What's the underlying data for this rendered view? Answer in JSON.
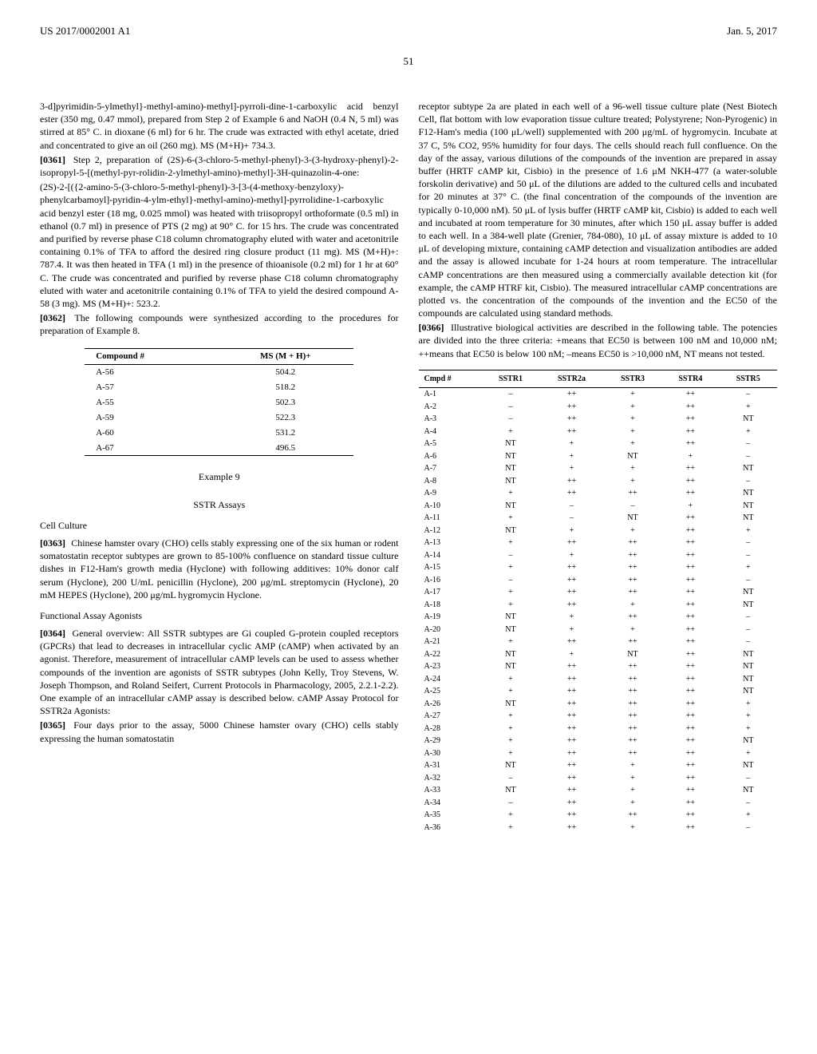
{
  "header": {
    "pub_number": "US 2017/0002001 A1",
    "pub_date": "Jan. 5, 2017",
    "page_number": "51"
  },
  "left_col": {
    "para1": "3-d]pyrimidin-5-ylmethyl}-methyl-amino)-methyl]-pyrroli-dine-1-carboxylic acid benzyl ester (350 mg, 0.47 mmol), prepared from Step 2 of Example 6 and NaOH (0.4 N, 5 ml) was stirred at 85° C. in dioxane (6 ml) for 6 hr. The crude was extracted with ethyl acetate, dried and concentrated to give an oil (260 mg). MS (M+H)+ 734.3.",
    "para2_num": "[0361]",
    "para2": "Step 2, preparation of (2S)-6-(3-chloro-5-methyl-phenyl)-3-(3-hydroxy-phenyl)-2-isopropyl-5-[(methyl-pyr-rolidin-2-ylmethyl-amino)-methyl]-3H-quinazolin-4-one:",
    "para2b": "(2S)-2-[({2-amino-5-(3-chloro-5-methyl-phenyl)-3-[3-(4-methoxy-benzyloxy)-phenylcarbamoyl]-pyridin-4-ylm-ethyl}-methyl-amino)-methyl]-pyrrolidine-1-carboxylic acid benzyl ester (18 mg, 0.025 mmol) was heated with triisopropyl orthoformate (0.5 ml) in ethanol (0.7 ml) in presence of PTS (2 mg) at 90° C. for 15 hrs. The crude was concentrated and purified by reverse phase C18 column chromatography eluted with water and acetonitrile containing 0.1% of TFA to afford the desired ring closure product (11 mg). MS (M+H)+: 787.4. It was then heated in TFA (1 ml) in the presence of thioanisole (0.2 ml) for 1 hr at 60° C. The crude was concentrated and purified by reverse phase C18 column chromatography eluted with water and acetonitrile containing 0.1% of TFA to yield the desired compound A-58 (3 mg). MS (M+H)+: 523.2.",
    "para3_num": "[0362]",
    "para3": "The following compounds were synthesized according to the procedures for preparation of Example 8.",
    "compound_table": {
      "headers": [
        "Compound #",
        "MS (M + H)+"
      ],
      "rows": [
        [
          "A-56",
          "504.2"
        ],
        [
          "A-57",
          "518.2"
        ],
        [
          "A-55",
          "502.3"
        ],
        [
          "A-59",
          "522.3"
        ],
        [
          "A-60",
          "531.2"
        ],
        [
          "A-67",
          "496.5"
        ]
      ]
    },
    "example_heading": "Example 9",
    "sstr_heading": "SSTR Assays",
    "cell_culture_heading": "Cell Culture",
    "para4_num": "[0363]",
    "para4": "Chinese hamster ovary (CHO) cells stably expressing one of the six human or rodent somatostatin receptor subtypes are grown to 85-100% confluence on standard tissue culture dishes in F12-Ham's growth media (Hyclone) with following additives: 10% donor calf serum (Hyclone), 200 U/mL penicillin (Hyclone), 200 μg/mL streptomycin (Hyclone), 20 mM HEPES (Hyclone), 200 μg/mL hygromycin Hyclone.",
    "functional_heading": "Functional Assay Agonists",
    "para5_num": "[0364]",
    "para5": "General overview: All SSTR subtypes are Gi coupled G-protein coupled receptors (GPCRs) that lead to decreases in intracellular cyclic AMP (cAMP) when activated by an agonist. Therefore, measurement of intracellular cAMP levels can be used to assess whether compounds of the invention are agonists of SSTR subtypes (John Kelly, Troy Stevens, W. Joseph Thompson, and Roland Seifert, Current Protocols in Pharmacology, 2005, 2.2.1-2.2). One example of an intracellular cAMP assay is described below. cAMP Assay Protocol for SSTR2a Agonists:",
    "para6_num": "[0365]",
    "para6": "Four days prior to the assay, 5000 Chinese hamster ovary (CHO) cells stably expressing the human somatostatin"
  },
  "right_col": {
    "para1": "receptor subtype 2a are plated in each well of a 96-well tissue culture plate (Nest Biotech Cell, flat bottom with low evaporation tissue culture treated; Polystyrene; Non-Pyrogenic) in F12-Ham's media (100 μL/well) supplemented with 200 μg/mL of hygromycin. Incubate at 37 C, 5% CO2, 95% humidity for four days. The cells should reach full confluence. On the day of the assay, various dilutions of the compounds of the invention are prepared in assay buffer (HRTF cAMP kit, Cisbio) in the presence of 1.6 μM NKH-477 (a water-soluble forskolin derivative) and 50 μL of the dilutions are added to the cultured cells and incubated for 20 minutes at 37° C. (the final concentration of the compounds of the invention are typically 0-10,000 nM). 50 μL of lysis buffer (HRTF cAMP kit, Cisbio) is added to each well and incubated at room temperature for 30 minutes, after which 150 μL assay buffer is added to each well. In a 384-well plate (Grenier, 784-080), 10 μL of assay mixture is added to 10 μL of developing mixture, containing cAMP detection and visualization antibodies are added and the assay is allowed incubate for 1-24 hours at room temperature. The intracellular cAMP concentrations are then measured using a commercially available detection kit (for example, the cAMP HTRF kit, Cisbio). The measured intracellular cAMP concentrations are plotted vs. the concentration of the compounds of the invention and the EC50 of the compounds are calculated using standard methods.",
    "para2_num": "[0366]",
    "para2": "Illustrative biological activities are described in the following table. The potencies are divided into the three criteria: +means that EC50 is between 100 nM and 10,000 nM; ++means that EC50 is below 100 nM; –means EC50 is >10,000 nM, NT means not tested.",
    "bio_table": {
      "headers": [
        "Cmpd #",
        "SSTR1",
        "SSTR2a",
        "SSTR3",
        "SSTR4",
        "SSTR5"
      ],
      "rows": [
        [
          "A-1",
          "–",
          "++",
          "+",
          "++",
          "–"
        ],
        [
          "A-2",
          "–",
          "++",
          "+",
          "++",
          "+"
        ],
        [
          "A-3",
          "–",
          "++",
          "+",
          "++",
          "NT"
        ],
        [
          "A-4",
          "+",
          "++",
          "+",
          "++",
          "+"
        ],
        [
          "A-5",
          "NT",
          "+",
          "+",
          "++",
          "–"
        ],
        [
          "A-6",
          "NT",
          "+",
          "NT",
          "+",
          "–"
        ],
        [
          "A-7",
          "NT",
          "+",
          "+",
          "++",
          "NT"
        ],
        [
          "A-8",
          "NT",
          "++",
          "+",
          "++",
          "–"
        ],
        [
          "A-9",
          "+",
          "++",
          "++",
          "++",
          "NT"
        ],
        [
          "A-10",
          "NT",
          "–",
          "–",
          "+",
          "NT"
        ],
        [
          "A-11",
          "+",
          "–",
          "NT",
          "++",
          "NT"
        ],
        [
          "A-12",
          "NT",
          "+",
          "+",
          "++",
          "+"
        ],
        [
          "A-13",
          "+",
          "++",
          "++",
          "++",
          "–"
        ],
        [
          "A-14",
          "–",
          "+",
          "++",
          "++",
          "–"
        ],
        [
          "A-15",
          "+",
          "++",
          "++",
          "++",
          "+"
        ],
        [
          "A-16",
          "–",
          "++",
          "++",
          "++",
          "–"
        ],
        [
          "A-17",
          "+",
          "++",
          "++",
          "++",
          "NT"
        ],
        [
          "A-18",
          "+",
          "++",
          "+",
          "++",
          "NT"
        ],
        [
          "A-19",
          "NT",
          "+",
          "++",
          "++",
          "–"
        ],
        [
          "A-20",
          "NT",
          "+",
          "+",
          "++",
          "–"
        ],
        [
          "A-21",
          "+",
          "++",
          "++",
          "++",
          "–"
        ],
        [
          "A-22",
          "NT",
          "+",
          "NT",
          "++",
          "NT"
        ],
        [
          "A-23",
          "NT",
          "++",
          "++",
          "++",
          "NT"
        ],
        [
          "A-24",
          "+",
          "++",
          "++",
          "++",
          "NT"
        ],
        [
          "A-25",
          "+",
          "++",
          "++",
          "++",
          "NT"
        ],
        [
          "A-26",
          "NT",
          "++",
          "++",
          "++",
          "+"
        ],
        [
          "A-27",
          "+",
          "++",
          "++",
          "++",
          "+"
        ],
        [
          "A-28",
          "+",
          "++",
          "++",
          "++",
          "+"
        ],
        [
          "A-29",
          "+",
          "++",
          "++",
          "++",
          "NT"
        ],
        [
          "A-30",
          "+",
          "++",
          "++",
          "++",
          "+"
        ],
        [
          "A-31",
          "NT",
          "++",
          "+",
          "++",
          "NT"
        ],
        [
          "A-32",
          "–",
          "++",
          "+",
          "++",
          "–"
        ],
        [
          "A-33",
          "NT",
          "++",
          "+",
          "++",
          "NT"
        ],
        [
          "A-34",
          "–",
          "++",
          "+",
          "++",
          "–"
        ],
        [
          "A-35",
          "+",
          "++",
          "++",
          "++",
          "+"
        ],
        [
          "A-36",
          "+",
          "++",
          "+",
          "++",
          "–"
        ]
      ]
    }
  }
}
